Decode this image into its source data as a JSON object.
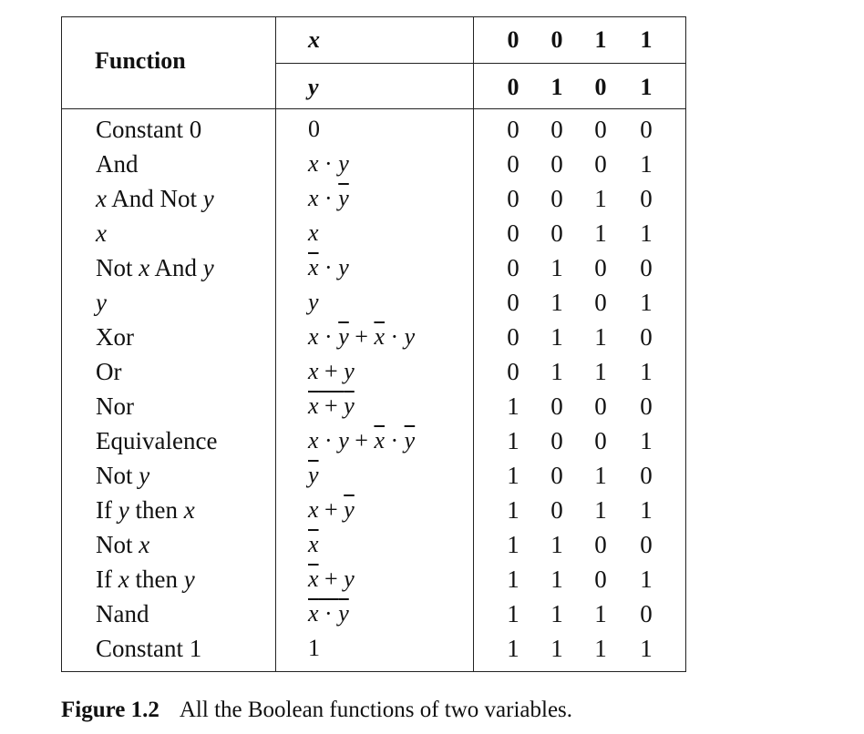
{
  "header": {
    "function_label": "Function",
    "x_label": "x",
    "y_label": "y",
    "x_values": [
      "0",
      "0",
      "1",
      "1"
    ],
    "y_values": [
      "0",
      "1",
      "0",
      "1"
    ]
  },
  "rows": [
    {
      "name": "Constant 0",
      "formula": "0",
      "values": [
        "0",
        "0",
        "0",
        "0"
      ]
    },
    {
      "name": "And",
      "formula": "x · y",
      "values": [
        "0",
        "0",
        "0",
        "1"
      ]
    },
    {
      "name": "x And Not y",
      "formula": "x · y̅",
      "values": [
        "0",
        "0",
        "1",
        "0"
      ]
    },
    {
      "name": "x",
      "formula": "x",
      "values": [
        "0",
        "0",
        "1",
        "1"
      ]
    },
    {
      "name": "Not x And y",
      "formula": "x̅ · y",
      "values": [
        "0",
        "1",
        "0",
        "0"
      ]
    },
    {
      "name": "y",
      "formula": "y",
      "values": [
        "0",
        "1",
        "0",
        "1"
      ]
    },
    {
      "name": "Xor",
      "formula": "x · y̅ + x̅ · y",
      "values": [
        "0",
        "1",
        "1",
        "0"
      ]
    },
    {
      "name": "Or",
      "formula": "x + y",
      "values": [
        "0",
        "1",
        "1",
        "1"
      ]
    },
    {
      "name": "Nor",
      "formula": "x + y (overlined)",
      "values": [
        "1",
        "0",
        "0",
        "0"
      ]
    },
    {
      "name": "Equivalence",
      "formula": "x · y + x̅ · y̅",
      "values": [
        "1",
        "0",
        "0",
        "1"
      ]
    },
    {
      "name": "Not y",
      "formula": "y̅",
      "values": [
        "1",
        "0",
        "1",
        "0"
      ]
    },
    {
      "name": "If y then x",
      "formula": "x + y̅",
      "values": [
        "1",
        "0",
        "1",
        "1"
      ]
    },
    {
      "name": "Not x",
      "formula": "x̅",
      "values": [
        "1",
        "1",
        "0",
        "0"
      ]
    },
    {
      "name": "If x then y",
      "formula": "x̅ + y",
      "values": [
        "1",
        "1",
        "0",
        "1"
      ]
    },
    {
      "name": "Nand",
      "formula": "x · y (overlined)",
      "values": [
        "1",
        "1",
        "1",
        "0"
      ]
    },
    {
      "name": "Constant 1",
      "formula": "1",
      "values": [
        "1",
        "1",
        "1",
        "1"
      ]
    }
  ],
  "caption": {
    "label": "Figure 1.2",
    "text": "All the Boolean functions of two variables."
  }
}
